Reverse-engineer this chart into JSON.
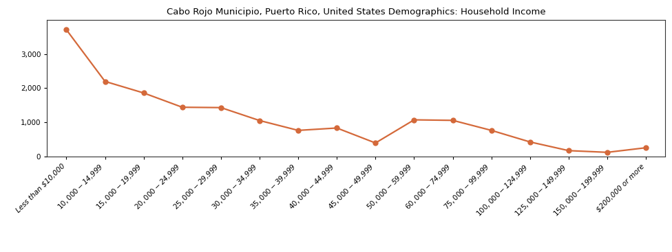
{
  "title": "Cabo Rojo Municipio, Puerto Rico, United States Demographics: Household Income",
  "categories": [
    "Less than $10,000",
    "$10,000 - $14,999",
    "$15,000 - $19,999",
    "$20,000 - $24,999",
    "$25,000 - $29,999",
    "$30,000 - $34,999",
    "$35,000 - $39,999",
    "$40,000 - $44,999",
    "$45,000 - $49,999",
    "$50,000 - $59,999",
    "$60,000 - $74,999",
    "$75,000 - $99,999",
    "$100,000 - $124,999",
    "$125,000 - $149,999",
    "$150,000 - $199,999",
    "$200,000 or more"
  ],
  "values": [
    3720,
    2200,
    1860,
    1440,
    1430,
    1050,
    760,
    830,
    390,
    1070,
    1055,
    760,
    420,
    165,
    115,
    250
  ],
  "line_color": "#d4693a",
  "marker": "o",
  "marker_size": 5,
  "line_width": 1.6,
  "ylim": [
    0,
    4000
  ],
  "yticks": [
    0,
    1000,
    2000,
    3000
  ],
  "bg_color": "#ffffff",
  "title_fontsize": 9.5,
  "tick_fontsize": 7.5,
  "spine_color": "#333333"
}
